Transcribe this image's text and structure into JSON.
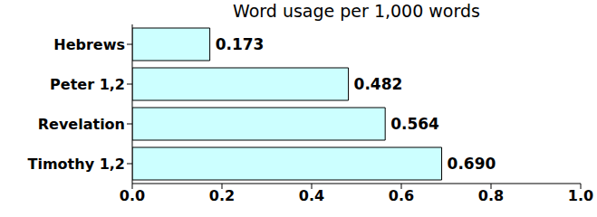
{
  "chart_data": {
    "type": "bar",
    "title": "Word usage per 1,000 words",
    "orientation": "horizontal",
    "categories": [
      "Hebrews",
      "Peter 1,2",
      "Revelation",
      "Timothy 1,2"
    ],
    "values": [
      0.173,
      0.482,
      0.564,
      0.69
    ],
    "value_labels": [
      "0.173",
      "0.482",
      "0.564",
      "0.690"
    ],
    "data_labels": true,
    "color": "#ccffff",
    "xlim": [
      0,
      1
    ],
    "xticks": [
      {
        "value": 0,
        "label": "0.0"
      },
      0.2,
      0.4,
      0.6,
      0.8,
      {
        "value": 1,
        "label": "1.0"
      }
    ],
    "grid": false
  }
}
